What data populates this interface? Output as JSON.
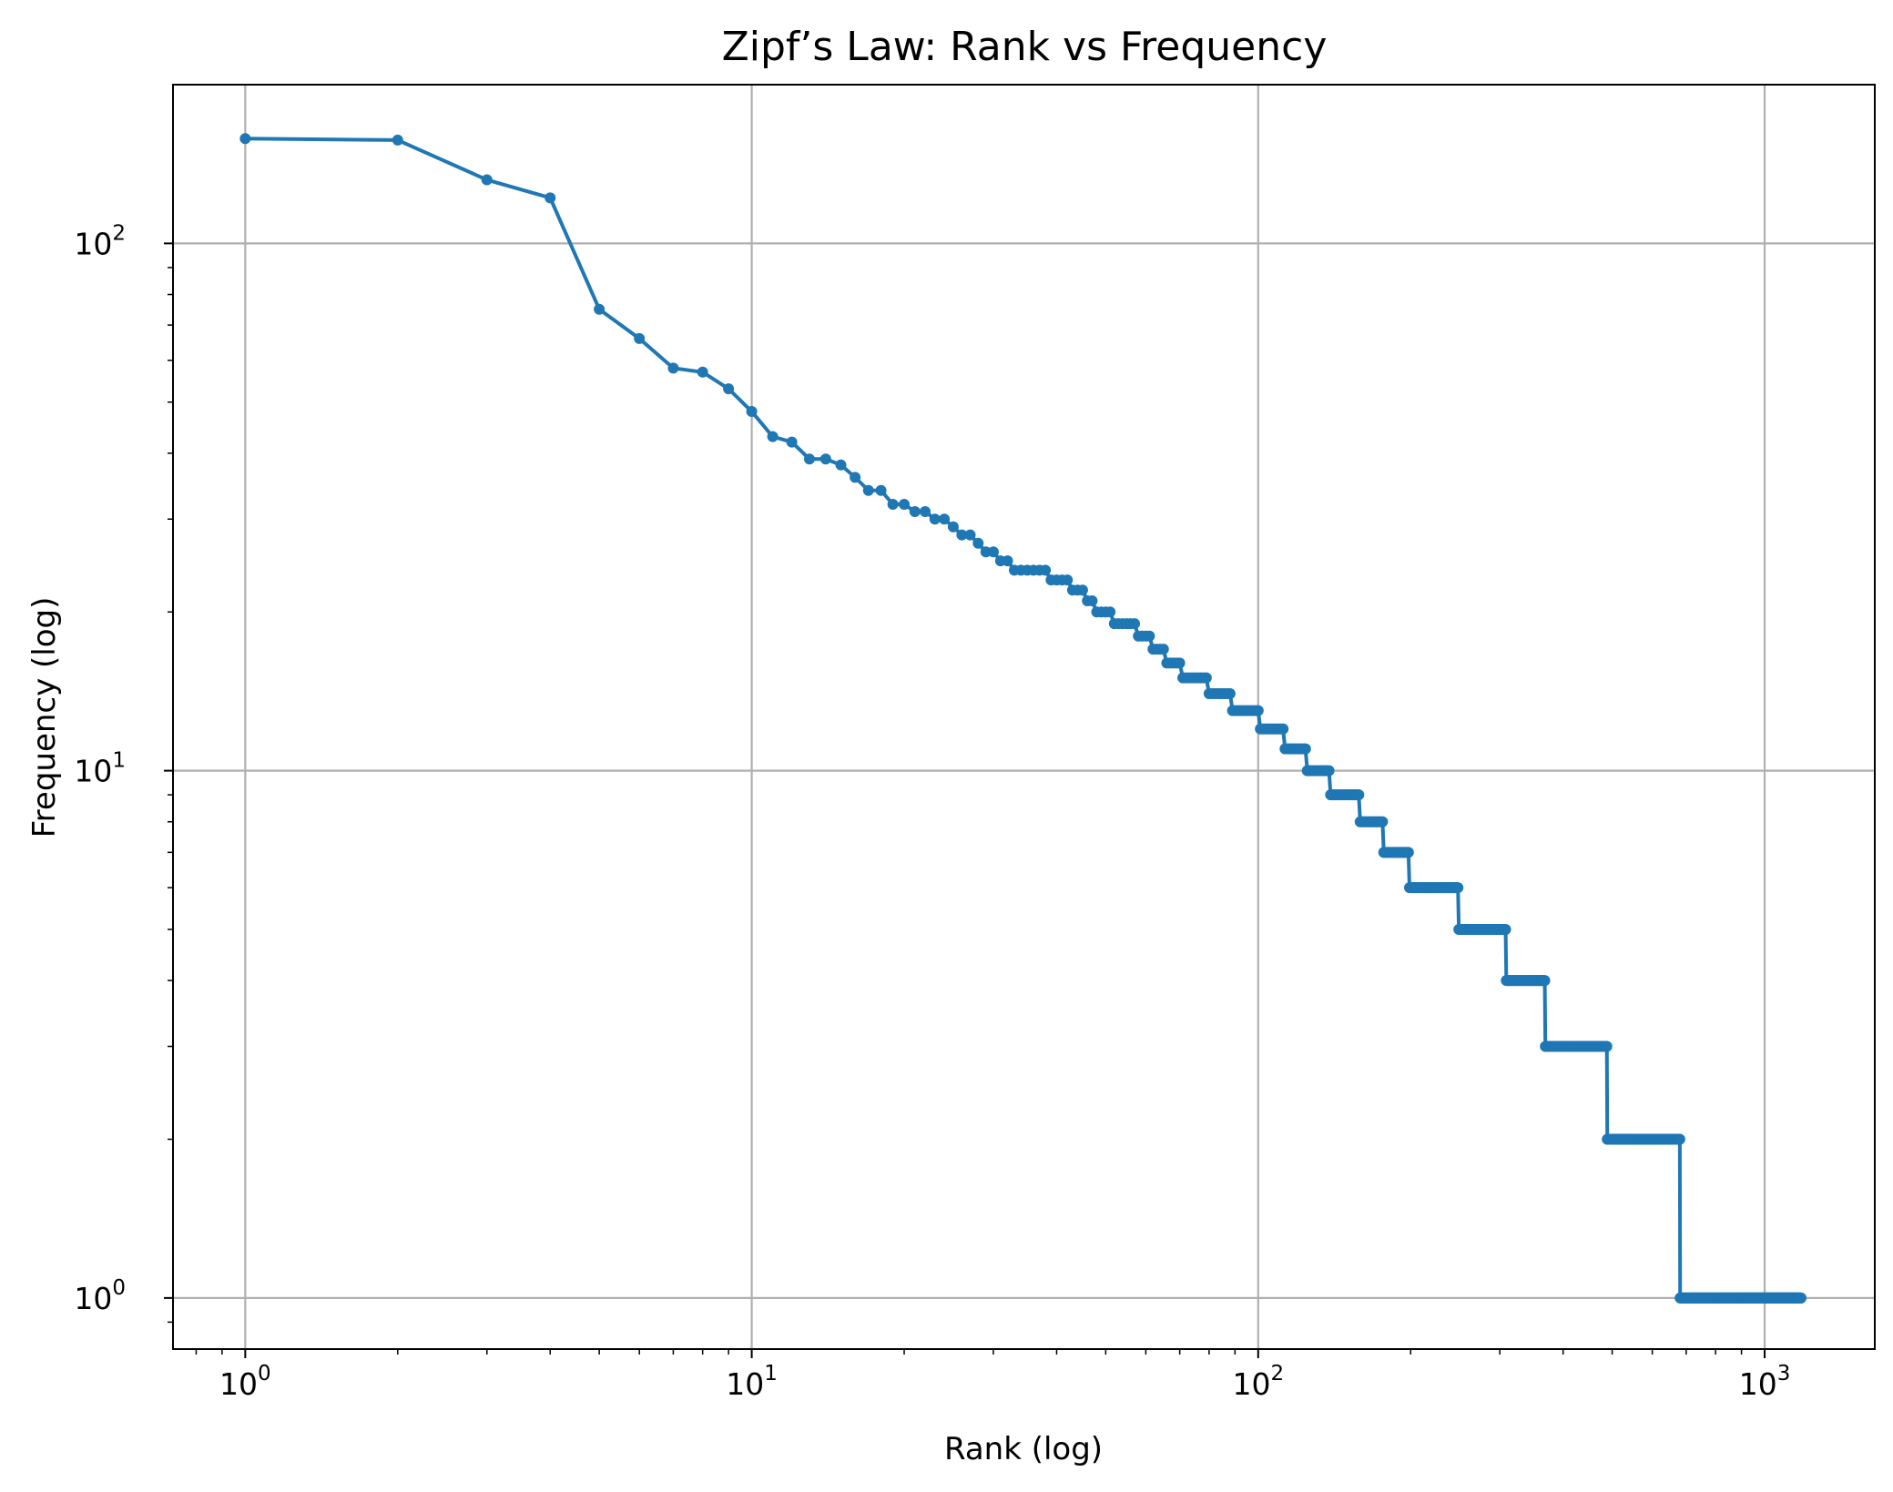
{
  "chart_data": {
    "type": "line",
    "title": "Zipf’s Law: Rank vs Frequency",
    "xlabel": "Rank (log)",
    "ylabel": "Frequency (log)",
    "xscale": "log",
    "yscale": "log",
    "xlim": [
      0.72,
      1650
    ],
    "ylim": [
      0.8,
      200
    ],
    "grid": true,
    "color": "#1f77b4",
    "x_ticks": [
      {
        "base": "10",
        "exp": "0",
        "value": 1
      },
      {
        "base": "10",
        "exp": "1",
        "value": 10
      },
      {
        "base": "10",
        "exp": "2",
        "value": 100
      },
      {
        "base": "10",
        "exp": "3",
        "value": 1000
      }
    ],
    "y_ticks": [
      {
        "base": "10",
        "exp": "0",
        "value": 1
      },
      {
        "base": "10",
        "exp": "1",
        "value": 10
      },
      {
        "base": "10",
        "exp": "2",
        "value": 100
      }
    ],
    "head_points": {
      "x": [
        1,
        2,
        3,
        4,
        5,
        6,
        7,
        8,
        9,
        10,
        11,
        12,
        13,
        14,
        15,
        16,
        17,
        18,
        19,
        20,
        21,
        22,
        23,
        24,
        25,
        26,
        27,
        28,
        29,
        30
      ],
      "y": [
        158,
        157,
        132,
        122,
        75,
        66,
        58,
        57,
        53,
        48,
        43,
        42,
        39,
        39,
        38,
        36,
        34,
        34,
        32,
        32,
        31,
        31,
        30,
        30,
        29,
        28,
        28,
        27,
        26,
        26
      ]
    },
    "frequency_runs": [
      {
        "frequency": 25,
        "rank_start": 31,
        "rank_end": 32
      },
      {
        "frequency": 24,
        "rank_start": 33,
        "rank_end": 38
      },
      {
        "frequency": 23,
        "rank_start": 39,
        "rank_end": 42
      },
      {
        "frequency": 22,
        "rank_start": 43,
        "rank_end": 45
      },
      {
        "frequency": 21,
        "rank_start": 46,
        "rank_end": 47
      },
      {
        "frequency": 20,
        "rank_start": 48,
        "rank_end": 51
      },
      {
        "frequency": 19,
        "rank_start": 52,
        "rank_end": 57
      },
      {
        "frequency": 18,
        "rank_start": 58,
        "rank_end": 61
      },
      {
        "frequency": 17,
        "rank_start": 62,
        "rank_end": 65
      },
      {
        "frequency": 16,
        "rank_start": 66,
        "rank_end": 70
      },
      {
        "frequency": 15,
        "rank_start": 71,
        "rank_end": 79
      },
      {
        "frequency": 14,
        "rank_start": 80,
        "rank_end": 88
      },
      {
        "frequency": 13,
        "rank_start": 89,
        "rank_end": 100
      },
      {
        "frequency": 12,
        "rank_start": 101,
        "rank_end": 112
      },
      {
        "frequency": 11,
        "rank_start": 113,
        "rank_end": 124
      },
      {
        "frequency": 10,
        "rank_start": 125,
        "rank_end": 138
      },
      {
        "frequency": 9,
        "rank_start": 139,
        "rank_end": 158
      },
      {
        "frequency": 8,
        "rank_start": 159,
        "rank_end": 176
      },
      {
        "frequency": 7,
        "rank_start": 177,
        "rank_end": 198
      },
      {
        "frequency": 6,
        "rank_start": 199,
        "rank_end": 248
      },
      {
        "frequency": 5,
        "rank_start": 249,
        "rank_end": 308
      },
      {
        "frequency": 4,
        "rank_start": 309,
        "rank_end": 368
      },
      {
        "frequency": 3,
        "rank_start": 369,
        "rank_end": 488
      },
      {
        "frequency": 2,
        "rank_start": 489,
        "rank_end": 680
      },
      {
        "frequency": 1,
        "rank_start": 681,
        "rank_end": 1180
      }
    ]
  }
}
